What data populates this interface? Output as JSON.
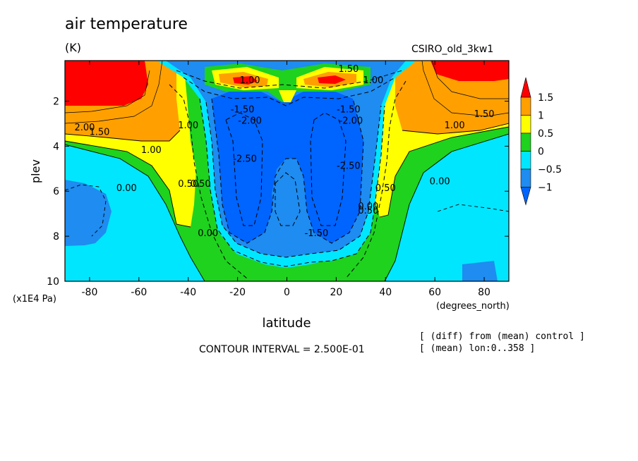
{
  "header": {
    "title": "air temperature",
    "units": "(K)",
    "dataset": "CSIRO_old_3kw1"
  },
  "footer": {
    "contour_interval": "CONTOUR INTERVAL = 2.500E-01",
    "note1": "[ (diff) from (mean) control ]",
    "note2": "[ (mean) lon:0..358 ]"
  },
  "chart_data": {
    "type": "contour",
    "title": "air temperature",
    "units": "(K)",
    "xlabel": "latitude",
    "xunits": "(degrees_north)",
    "ylabel": "plev",
    "yunits": "(x1E4 Pa)",
    "xlim": [
      -90,
      90
    ],
    "ylim": [
      10,
      0.2
    ],
    "xticks": [
      -80,
      -60,
      -40,
      -20,
      0,
      20,
      40,
      60,
      80
    ],
    "xtick_labels": [
      "-80",
      "-60",
      "-40",
      "-20",
      "0",
      "20",
      "40",
      "60",
      "80"
    ],
    "yticks": [
      2,
      4,
      6,
      8,
      10
    ],
    "ytick_labels": [
      "2",
      "4",
      "6",
      "8",
      "10"
    ],
    "contour_interval": 0.25,
    "colorbar": {
      "levels": [
        -1,
        -0.5,
        0,
        0.5,
        1,
        1.5
      ],
      "labels": [
        "−1",
        "−0.5",
        "0",
        "0.5",
        "1",
        "1.5"
      ],
      "colors": [
        "#1e8cf0",
        "#00e6ff",
        "#1ed21e",
        "#ffff00",
        "#ffa000",
        "#ff0000",
        "#0064ff"
      ]
    },
    "contour_labels": [
      {
        "text": "2.00",
        "lat": -82,
        "p": 3.3
      },
      {
        "text": "1.50",
        "lat": -76,
        "p": 3.5
      },
      {
        "text": "1.00",
        "lat": -55,
        "p": 4.3
      },
      {
        "text": "0.00",
        "lat": -65,
        "p": 6.0
      },
      {
        "text": "0.50",
        "lat": -40,
        "p": 5.8
      },
      {
        "text": "0.50",
        "lat": -35,
        "p": 5.8
      },
      {
        "text": "0.00",
        "lat": -32,
        "p": 8.0
      },
      {
        "text": "1.00",
        "lat": -40,
        "p": 3.2
      },
      {
        "text": "-1.50",
        "lat": -18,
        "p": 2.5
      },
      {
        "text": "-2.00",
        "lat": -15,
        "p": 3.0
      },
      {
        "text": "-2.50",
        "lat": -17,
        "p": 4.7
      },
      {
        "text": "-1.50",
        "lat": 25,
        "p": 2.5
      },
      {
        "text": "-2.00",
        "lat": 26,
        "p": 3.0
      },
      {
        "text": "-2.50",
        "lat": 25,
        "p": 5.0
      },
      {
        "text": "-1.50",
        "lat": 12,
        "p": 8.0
      },
      {
        "text": "0.50",
        "lat": 33,
        "p": 7.0
      },
      {
        "text": "0.00",
        "lat": 33,
        "p": 6.8
      },
      {
        "text": "0.50",
        "lat": 40,
        "p": 6.0
      },
      {
        "text": "0.00",
        "lat": 62,
        "p": 5.7
      },
      {
        "text": "1.00",
        "lat": 68,
        "p": 3.2
      },
      {
        "text": "1.50",
        "lat": 80,
        "p": 2.7
      },
      {
        "text": "1.50",
        "lat": 25,
        "p": 0.7
      },
      {
        "text": "1.00",
        "lat": -15,
        "p": 1.2
      },
      {
        "text": "1.00",
        "lat": 35,
        "p": 1.2
      }
    ]
  }
}
